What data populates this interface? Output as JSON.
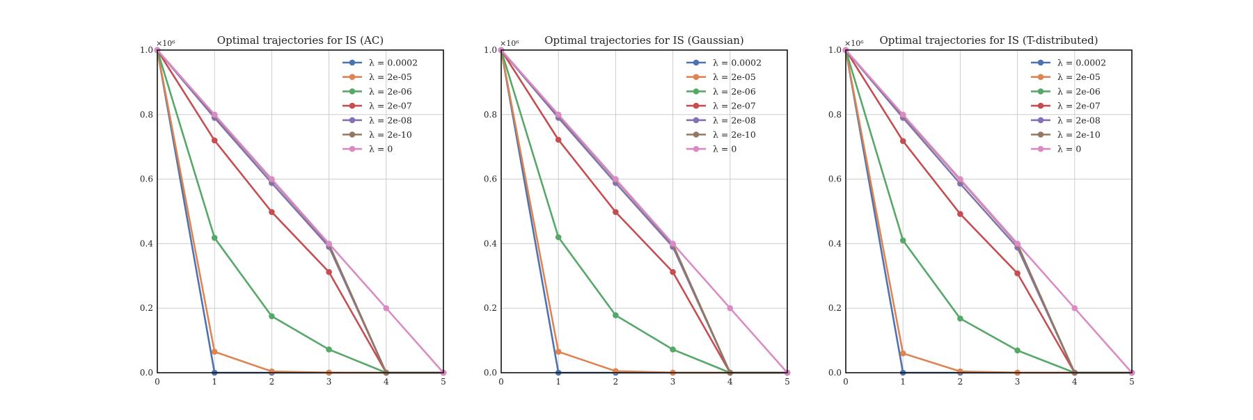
{
  "chart_data": [
    {
      "type": "line",
      "title": "Optimal trajectories for IS (AC)",
      "xlabel": "",
      "ylabel": "",
      "y_multiplier": "×10⁶",
      "xlim": [
        0,
        5
      ],
      "ylim": [
        0,
        1.0
      ],
      "xticks": [
        "0",
        "1",
        "2",
        "3",
        "4",
        "5"
      ],
      "yticks": [
        "0.0",
        "0.2",
        "0.4",
        "0.6",
        "0.8",
        "1.0"
      ],
      "grid": true,
      "legend_position": "top-right",
      "x": [
        0,
        1,
        2,
        3,
        4,
        5
      ],
      "series": [
        {
          "name": "λ = 0.0002",
          "color": "#4c72b0",
          "values": [
            1.0,
            0.0,
            0.0,
            0.0,
            0.0,
            0.0
          ]
        },
        {
          "name": "λ = 2e-05",
          "color": "#dd8452",
          "values": [
            1.0,
            0.065,
            0.004,
            0.0003,
            0.0,
            0.0
          ]
        },
        {
          "name": "λ = 2e-06",
          "color": "#55a868",
          "values": [
            1.0,
            0.418,
            0.175,
            0.072,
            0.0,
            0.0
          ]
        },
        {
          "name": "λ = 2e-07",
          "color": "#c44e52",
          "values": [
            1.0,
            0.72,
            0.498,
            0.312,
            0.0,
            0.0
          ]
        },
        {
          "name": "λ = 2e-08",
          "color": "#8172b3",
          "values": [
            1.0,
            0.79,
            0.588,
            0.39,
            0.0,
            0.0
          ]
        },
        {
          "name": "λ = 2e-10",
          "color": "#937860",
          "values": [
            1.0,
            0.798,
            0.598,
            0.398,
            0.0,
            0.0
          ]
        },
        {
          "name": "λ = 0",
          "color": "#da8bc3",
          "values": [
            1.0,
            0.8,
            0.6,
            0.4,
            0.2,
            0.0
          ]
        }
      ]
    },
    {
      "type": "line",
      "title": "Optimal trajectories for IS (Gaussian)",
      "xlabel": "",
      "ylabel": "",
      "y_multiplier": "×10⁶",
      "xlim": [
        0,
        5
      ],
      "ylim": [
        0,
        1.0
      ],
      "xticks": [
        "0",
        "1",
        "2",
        "3",
        "4",
        "5"
      ],
      "yticks": [
        "0.0",
        "0.2",
        "0.4",
        "0.6",
        "0.8",
        "1.0"
      ],
      "grid": true,
      "legend_position": "top-right",
      "x": [
        0,
        1,
        2,
        3,
        4,
        5
      ],
      "series": [
        {
          "name": "λ = 0.0002",
          "color": "#4c72b0",
          "values": [
            1.0,
            0.0,
            0.0,
            0.0,
            0.0,
            0.0
          ]
        },
        {
          "name": "λ = 2e-05",
          "color": "#dd8452",
          "values": [
            1.0,
            0.065,
            0.005,
            0.0005,
            0.0,
            0.0
          ]
        },
        {
          "name": "λ = 2e-06",
          "color": "#55a868",
          "values": [
            1.0,
            0.42,
            0.178,
            0.072,
            0.0,
            0.0
          ]
        },
        {
          "name": "λ = 2e-07",
          "color": "#c44e52",
          "values": [
            1.0,
            0.722,
            0.498,
            0.312,
            0.0,
            0.0
          ]
        },
        {
          "name": "λ = 2e-08",
          "color": "#8172b3",
          "values": [
            1.0,
            0.79,
            0.588,
            0.39,
            0.0,
            0.0
          ]
        },
        {
          "name": "λ = 2e-10",
          "color": "#937860",
          "values": [
            1.0,
            0.798,
            0.598,
            0.398,
            0.0,
            0.0
          ]
        },
        {
          "name": "λ = 0",
          "color": "#da8bc3",
          "values": [
            1.0,
            0.8,
            0.6,
            0.4,
            0.2,
            0.0
          ]
        }
      ]
    },
    {
      "type": "line",
      "title": "Optimal trajectories for IS (T-distributed)",
      "xlabel": "",
      "ylabel": "",
      "y_multiplier": "×10⁶",
      "xlim": [
        0,
        5
      ],
      "ylim": [
        0,
        1.0
      ],
      "xticks": [
        "0",
        "1",
        "2",
        "3",
        "4",
        "5"
      ],
      "yticks": [
        "0.0",
        "0.2",
        "0.4",
        "0.6",
        "0.8",
        "1.0"
      ],
      "grid": true,
      "legend_position": "top-right",
      "x": [
        0,
        1,
        2,
        3,
        4,
        5
      ],
      "series": [
        {
          "name": "λ = 0.0002",
          "color": "#4c72b0",
          "values": [
            1.0,
            0.0,
            0.0,
            0.0,
            0.0,
            0.0
          ]
        },
        {
          "name": "λ = 2e-05",
          "color": "#dd8452",
          "values": [
            1.0,
            0.06,
            0.004,
            0.0003,
            0.0,
            0.0
          ]
        },
        {
          "name": "λ = 2e-06",
          "color": "#55a868",
          "values": [
            1.0,
            0.41,
            0.168,
            0.069,
            0.0,
            0.0
          ]
        },
        {
          "name": "λ = 2e-07",
          "color": "#c44e52",
          "values": [
            1.0,
            0.718,
            0.492,
            0.308,
            0.0,
            0.0
          ]
        },
        {
          "name": "λ = 2e-08",
          "color": "#8172b3",
          "values": [
            1.0,
            0.79,
            0.586,
            0.388,
            0.0,
            0.0
          ]
        },
        {
          "name": "λ = 2e-10",
          "color": "#937860",
          "values": [
            1.0,
            0.798,
            0.598,
            0.398,
            0.0,
            0.0
          ]
        },
        {
          "name": "λ = 0",
          "color": "#da8bc3",
          "values": [
            1.0,
            0.8,
            0.6,
            0.4,
            0.2,
            0.0
          ]
        }
      ]
    }
  ]
}
